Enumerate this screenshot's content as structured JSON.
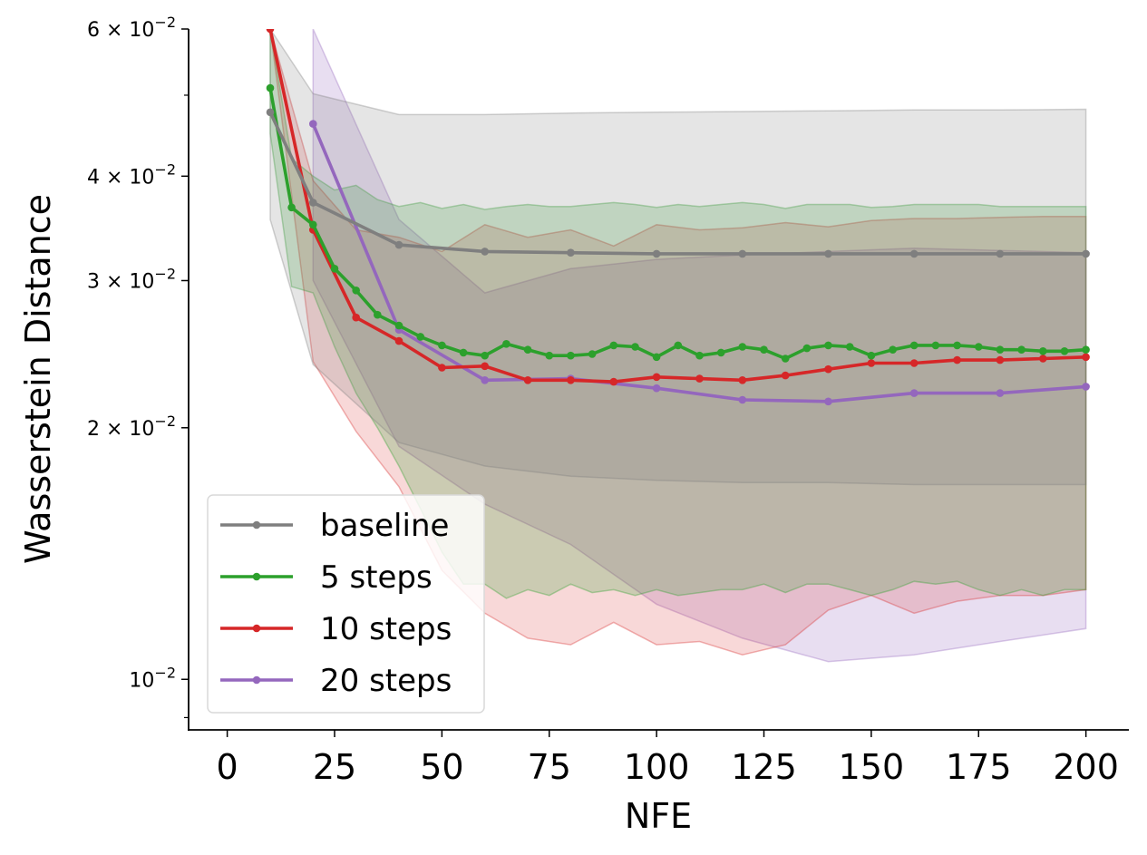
{
  "chart_data": {
    "type": "line",
    "title": "",
    "xlabel": "NFE",
    "ylabel": "Wasserstein Distance",
    "xlim": [
      -9,
      210
    ],
    "ylim": [
      0.0087,
      0.06
    ],
    "y_scale": "log",
    "x_ticks": [
      0,
      25,
      50,
      75,
      100,
      125,
      150,
      175,
      200
    ],
    "x_tick_labels": [
      "0",
      "25",
      "50",
      "75",
      "100",
      "125",
      "150",
      "175",
      "200"
    ],
    "y_ticks": [
      0.01,
      0.02,
      0.03,
      0.04,
      0.06
    ],
    "y_tick_labels": [
      {
        "base": "10",
        "exp": "−2"
      },
      {
        "base": "2 × 10",
        "exp": "−2"
      },
      {
        "base": "3 × 10",
        "exp": "−2"
      },
      {
        "base": "4 × 10",
        "exp": "−2"
      },
      {
        "base": "6 × 10",
        "exp": "−2"
      }
    ],
    "y_minor_ticks": [
      0.009,
      0.05
    ],
    "grid": false,
    "legend_position": "lower-left",
    "series": [
      {
        "name": "20 steps",
        "color": "#9467bd",
        "band_color": "#9467bd",
        "band_opacity": 0.22,
        "x": [
          20,
          40,
          60,
          80,
          100,
          120,
          140,
          160,
          180,
          200
        ],
        "y": [
          0.0462,
          0.0262,
          0.0228,
          0.0229,
          0.0223,
          0.0216,
          0.0215,
          0.022,
          0.022,
          0.0224
        ],
        "band_x": [
          20,
          40,
          60,
          80,
          100,
          120,
          140,
          160,
          180,
          200
        ],
        "band_lower": [
          0.03,
          0.019,
          0.0162,
          0.0145,
          0.0123,
          0.0112,
          0.0105,
          0.0107,
          0.0111,
          0.0115
        ],
        "band_upper": [
          0.06,
          0.0355,
          0.029,
          0.031,
          0.0318,
          0.0322,
          0.0325,
          0.0328,
          0.0326,
          0.0324
        ]
      },
      {
        "name": "10 steps",
        "color": "#d62728",
        "band_color": "#d62728",
        "band_opacity": 0.18,
        "x": [
          10,
          20,
          30,
          40,
          50,
          60,
          70,
          80,
          90,
          100,
          110,
          120,
          130,
          140,
          150,
          160,
          170,
          180,
          190,
          200
        ],
        "y": [
          0.06,
          0.0345,
          0.0271,
          0.0254,
          0.0236,
          0.0237,
          0.0228,
          0.0228,
          0.0227,
          0.023,
          0.0229,
          0.0228,
          0.0231,
          0.0235,
          0.0239,
          0.0239,
          0.0241,
          0.0241,
          0.0242,
          0.0243
        ],
        "band_x": [
          10,
          20,
          30,
          40,
          50,
          60,
          70,
          80,
          90,
          100,
          110,
          120,
          130,
          140,
          150,
          160,
          170,
          180,
          190,
          200
        ],
        "band_lower": [
          0.06,
          0.024,
          0.0198,
          0.017,
          0.0135,
          0.012,
          0.0112,
          0.011,
          0.0117,
          0.011,
          0.0111,
          0.0107,
          0.011,
          0.0121,
          0.0126,
          0.012,
          0.0124,
          0.0126,
          0.0126,
          0.0128
        ],
        "band_upper": [
          0.06,
          0.0395,
          0.0345,
          0.0338,
          0.0325,
          0.035,
          0.0338,
          0.0345,
          0.033,
          0.035,
          0.0345,
          0.0347,
          0.0352,
          0.0348,
          0.0354,
          0.0356,
          0.0356,
          0.0357,
          0.0358,
          0.0358
        ]
      },
      {
        "name": "5 steps",
        "color": "#2ca02c",
        "band_color": "#2ca02c",
        "band_opacity": 0.22,
        "x": [
          10,
          15,
          20,
          25,
          30,
          35,
          40,
          45,
          50,
          55,
          60,
          65,
          70,
          75,
          80,
          85,
          90,
          95,
          100,
          105,
          110,
          115,
          120,
          125,
          130,
          135,
          140,
          145,
          150,
          155,
          160,
          165,
          170,
          175,
          180,
          185,
          190,
          195,
          200
        ],
        "y": [
          0.051,
          0.0367,
          0.035,
          0.031,
          0.0292,
          0.0273,
          0.0265,
          0.0257,
          0.0251,
          0.0246,
          0.0244,
          0.0252,
          0.0248,
          0.0244,
          0.0244,
          0.0245,
          0.0251,
          0.025,
          0.0243,
          0.0251,
          0.0244,
          0.0246,
          0.025,
          0.0248,
          0.0242,
          0.0249,
          0.0251,
          0.025,
          0.0244,
          0.0248,
          0.0251,
          0.0251,
          0.0251,
          0.025,
          0.0248,
          0.0248,
          0.0247,
          0.0247,
          0.0248
        ],
        "band_x": [
          10,
          15,
          20,
          25,
          30,
          35,
          40,
          45,
          50,
          55,
          60,
          65,
          70,
          75,
          80,
          85,
          90,
          95,
          100,
          105,
          110,
          115,
          120,
          125,
          130,
          135,
          140,
          145,
          150,
          155,
          160,
          165,
          170,
          175,
          180,
          185,
          190,
          195,
          200
        ],
        "band_lower": [
          0.045,
          0.0295,
          0.029,
          0.025,
          0.022,
          0.02,
          0.018,
          0.016,
          0.0142,
          0.013,
          0.013,
          0.0125,
          0.0128,
          0.0126,
          0.013,
          0.0127,
          0.0128,
          0.0126,
          0.0128,
          0.0126,
          0.0127,
          0.0128,
          0.0128,
          0.013,
          0.0127,
          0.013,
          0.013,
          0.0128,
          0.0126,
          0.0128,
          0.0131,
          0.013,
          0.0131,
          0.0128,
          0.0126,
          0.0128,
          0.0126,
          0.0128,
          0.0128
        ],
        "band_upper": [
          0.06,
          0.042,
          0.04,
          0.0385,
          0.039,
          0.0375,
          0.0368,
          0.0372,
          0.0366,
          0.037,
          0.0365,
          0.0368,
          0.037,
          0.0368,
          0.0368,
          0.037,
          0.0372,
          0.037,
          0.0367,
          0.037,
          0.0368,
          0.037,
          0.0372,
          0.037,
          0.0366,
          0.037,
          0.037,
          0.037,
          0.0367,
          0.0368,
          0.037,
          0.037,
          0.037,
          0.037,
          0.0368,
          0.0368,
          0.0368,
          0.0368,
          0.0368
        ]
      },
      {
        "name": "baseline",
        "color": "#7f7f7f",
        "band_color": "#7f7f7f",
        "band_opacity": 0.2,
        "x": [
          10,
          20,
          40,
          60,
          80,
          100,
          120,
          140,
          160,
          180,
          200
        ],
        "y": [
          0.0477,
          0.0372,
          0.0331,
          0.0325,
          0.0324,
          0.0323,
          0.0323,
          0.0323,
          0.0323,
          0.0323,
          0.0323
        ],
        "band_x": [
          10,
          20,
          40,
          60,
          80,
          100,
          120,
          140,
          160,
          180,
          200
        ],
        "band_lower": [
          0.0355,
          0.0238,
          0.0192,
          0.018,
          0.0175,
          0.0173,
          0.0172,
          0.0172,
          0.0171,
          0.0171,
          0.0171
        ],
        "band_upper": [
          0.06,
          0.0502,
          0.0474,
          0.0474,
          0.0476,
          0.0477,
          0.0478,
          0.0479,
          0.048,
          0.048,
          0.0481
        ]
      }
    ],
    "legend": [
      {
        "name": "baseline",
        "color": "#7f7f7f"
      },
      {
        "name": "5 steps",
        "color": "#2ca02c"
      },
      {
        "name": "10 steps",
        "color": "#d62728"
      },
      {
        "name": "20 steps",
        "color": "#9467bd"
      }
    ]
  }
}
